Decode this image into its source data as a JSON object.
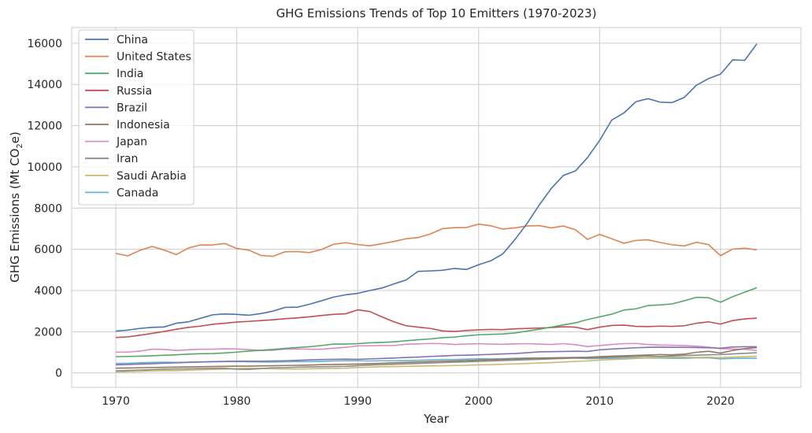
{
  "chart_data": {
    "type": "line",
    "title": "GHG Emissions Trends of Top 10 Emitters (1970-2023)",
    "xlabel": "Year",
    "ylabel_main": "GHG Emissions (Mt CO",
    "ylabel_sub": "2",
    "ylabel_end": "e)",
    "xlim": [
      1966.35,
      2026.65
    ],
    "ylim": [
      -700,
      16760
    ],
    "xticks": [
      1970,
      1980,
      1990,
      2000,
      2010,
      2020
    ],
    "yticks": [
      0,
      2000,
      4000,
      6000,
      8000,
      10000,
      12000,
      14000,
      16000
    ],
    "grid": true,
    "legend_position": "top-left",
    "x": [
      1970,
      1971,
      1972,
      1973,
      1974,
      1975,
      1976,
      1977,
      1978,
      1979,
      1980,
      1981,
      1982,
      1983,
      1984,
      1985,
      1986,
      1987,
      1988,
      1989,
      1990,
      1991,
      1992,
      1993,
      1994,
      1995,
      1996,
      1997,
      1998,
      1999,
      2000,
      2001,
      2002,
      2003,
      2004,
      2005,
      2006,
      2007,
      2008,
      2009,
      2010,
      2011,
      2012,
      2013,
      2014,
      2015,
      2016,
      2017,
      2018,
      2019,
      2020,
      2021,
      2022,
      2023
    ],
    "series": [
      {
        "name": "China",
        "color": "#4c72b0",
        "values": [
          2030,
          2080,
          2160,
          2210,
          2230,
          2410,
          2480,
          2650,
          2820,
          2860,
          2840,
          2800,
          2880,
          3000,
          3180,
          3190,
          3330,
          3500,
          3680,
          3790,
          3860,
          4000,
          4120,
          4320,
          4510,
          4930,
          4950,
          4980,
          5070,
          5020,
          5250,
          5440,
          5780,
          6470,
          7250,
          8140,
          8950,
          9580,
          9800,
          10450,
          11280,
          12270,
          12610,
          13160,
          13310,
          13140,
          13120,
          13370,
          13960,
          14280,
          14500,
          15190,
          15170,
          15970
        ]
      },
      {
        "name": "United States",
        "color": "#dd8452",
        "values": [
          5800,
          5680,
          5950,
          6140,
          5960,
          5740,
          6060,
          6210,
          6210,
          6280,
          6040,
          5960,
          5700,
          5660,
          5880,
          5890,
          5840,
          5990,
          6240,
          6320,
          6230,
          6170,
          6270,
          6380,
          6510,
          6570,
          6740,
          7000,
          7050,
          7060,
          7220,
          7140,
          6980,
          7040,
          7130,
          7150,
          7040,
          7130,
          6950,
          6480,
          6720,
          6510,
          6290,
          6430,
          6460,
          6330,
          6220,
          6160,
          6340,
          6230,
          5690,
          6010,
          6050,
          5970
        ]
      },
      {
        "name": "India",
        "color": "#55a868",
        "values": [
          790,
          800,
          810,
          830,
          860,
          880,
          910,
          930,
          940,
          970,
          1010,
          1060,
          1100,
          1140,
          1190,
          1230,
          1270,
          1330,
          1400,
          1400,
          1420,
          1460,
          1480,
          1510,
          1560,
          1610,
          1650,
          1710,
          1740,
          1800,
          1850,
          1870,
          1890,
          1940,
          2030,
          2120,
          2220,
          2330,
          2430,
          2590,
          2720,
          2850,
          3050,
          3110,
          3270,
          3300,
          3350,
          3500,
          3670,
          3650,
          3430,
          3700,
          3920,
          4140
        ]
      },
      {
        "name": "Russia",
        "color": "#c44e52",
        "values": [
          1720,
          1750,
          1830,
          1920,
          2010,
          2120,
          2210,
          2270,
          2360,
          2410,
          2470,
          2500,
          2540,
          2580,
          2630,
          2670,
          2720,
          2790,
          2840,
          2870,
          3060,
          2980,
          2720,
          2480,
          2290,
          2220,
          2160,
          2040,
          2010,
          2060,
          2090,
          2110,
          2100,
          2140,
          2160,
          2180,
          2200,
          2240,
          2220,
          2100,
          2220,
          2300,
          2320,
          2260,
          2250,
          2270,
          2260,
          2290,
          2410,
          2480,
          2370,
          2540,
          2620,
          2660
        ]
      },
      {
        "name": "Brazil",
        "color": "#8172b3",
        "values": [
          390,
          410,
          430,
          450,
          470,
          490,
          510,
          530,
          550,
          560,
          570,
          570,
          570,
          580,
          590,
          610,
          630,
          650,
          660,
          670,
          660,
          680,
          700,
          720,
          750,
          770,
          800,
          820,
          850,
          860,
          880,
          900,
          920,
          940,
          980,
          1020,
          1030,
          1040,
          1050,
          1040,
          1120,
          1160,
          1190,
          1220,
          1240,
          1250,
          1240,
          1240,
          1230,
          1220,
          1200,
          1260,
          1270,
          1270
        ]
      },
      {
        "name": "Indonesia",
        "color": "#937860",
        "values": [
          230,
          240,
          250,
          260,
          270,
          280,
          290,
          300,
          310,
          320,
          330,
          330,
          340,
          350,
          360,
          370,
          380,
          400,
          410,
          420,
          430,
          450,
          470,
          490,
          510,
          530,
          550,
          570,
          580,
          600,
          620,
          640,
          660,
          680,
          700,
          720,
          730,
          740,
          750,
          760,
          790,
          810,
          830,
          850,
          870,
          890,
          880,
          910,
          1000,
          1050,
          960,
          1090,
          1180,
          1230
        ]
      },
      {
        "name": "Japan",
        "color": "#da8bc3",
        "values": [
          1010,
          1010,
          1060,
          1150,
          1140,
          1090,
          1120,
          1150,
          1150,
          1170,
          1160,
          1130,
          1090,
          1100,
          1150,
          1160,
          1150,
          1150,
          1200,
          1240,
          1310,
          1320,
          1330,
          1330,
          1390,
          1410,
          1430,
          1420,
          1380,
          1400,
          1420,
          1400,
          1390,
          1410,
          1420,
          1400,
          1380,
          1420,
          1370,
          1280,
          1330,
          1380,
          1420,
          1430,
          1380,
          1350,
          1340,
          1330,
          1300,
          1250,
          1180,
          1160,
          1150,
          1090
        ]
      },
      {
        "name": "Iran",
        "color": "#8c8c8c",
        "values": [
          100,
          120,
          140,
          160,
          180,
          190,
          200,
          210,
          220,
          230,
          180,
          170,
          210,
          250,
          260,
          280,
          290,
          300,
          310,
          320,
          350,
          380,
          400,
          420,
          440,
          460,
          480,
          500,
          520,
          540,
          560,
          580,
          600,
          620,
          640,
          660,
          680,
          700,
          720,
          730,
          740,
          760,
          780,
          790,
          810,
          800,
          820,
          850,
          860,
          880,
          890,
          920,
          950,
          980
        ]
      },
      {
        "name": "Saudi Arabia",
        "color": "#ccb974",
        "values": [
          40,
          60,
          80,
          100,
          110,
          110,
          130,
          150,
          170,
          180,
          210,
          230,
          220,
          200,
          190,
          190,
          200,
          210,
          220,
          230,
          260,
          280,
          300,
          310,
          320,
          330,
          340,
          350,
          360,
          370,
          390,
          400,
          420,
          440,
          460,
          480,
          500,
          530,
          560,
          580,
          620,
          650,
          670,
          700,
          730,
          750,
          760,
          760,
          750,
          760,
          740,
          770,
          790,
          810
        ]
      },
      {
        "name": "Canada",
        "color": "#64b5cd",
        "values": [
          460,
          470,
          490,
          510,
          520,
          510,
          520,
          530,
          540,
          550,
          550,
          540,
          530,
          530,
          540,
          550,
          550,
          560,
          580,
          590,
          590,
          580,
          590,
          590,
          600,
          610,
          630,
          650,
          650,
          670,
          690,
          680,
          690,
          710,
          720,
          720,
          710,
          730,
          720,
          690,
          700,
          710,
          710,
          720,
          720,
          720,
          710,
          710,
          730,
          730,
          680,
          700,
          710,
          710
        ]
      }
    ]
  }
}
